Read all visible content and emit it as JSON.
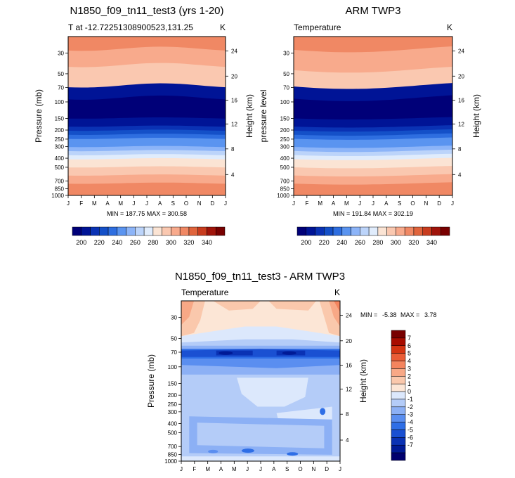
{
  "colors": {
    "abs_scale": [
      "#000078",
      "#001496",
      "#0a32b4",
      "#1450c8",
      "#2e6ee0",
      "#5a94f0",
      "#8cb4f8",
      "#bcd4fa",
      "#e0ecfc",
      "#fbe4d4",
      "#fac8b0",
      "#f8aa8c",
      "#f08864",
      "#e0643c",
      "#c83c1e",
      "#a0140a",
      "#780000"
    ],
    "diff_scale": [
      "#00006e",
      "#001a96",
      "#0a32b4",
      "#1a50d2",
      "#2e6ee6",
      "#5a8ef0",
      "#8cb0f5",
      "#b4ccf8",
      "#dce8fc",
      "#fce6d6",
      "#fac8ac",
      "#f8a886",
      "#f4845e",
      "#ea5c36",
      "#d43412",
      "#a80c00",
      "#780000"
    ]
  },
  "months": [
    "J",
    "F",
    "M",
    "A",
    "M",
    "J",
    "J",
    "A",
    "S",
    "O",
    "N",
    "D",
    "J"
  ],
  "pressure_ticks": [
    "30",
    "50",
    "70",
    "100",
    "150",
    "200",
    "250",
    "300",
    "400",
    "500",
    "700",
    "850",
    "1000"
  ],
  "height_ticks": [
    "24",
    "20",
    "16",
    "12",
    "8",
    "4"
  ],
  "chart_data": [
    {
      "type": "heatmap",
      "title": "N1850_f09_tn11_test3 (yrs 1-20)",
      "subtitle_left": "T at -12.72251308900523,131.25",
      "subtitle_right": "K",
      "ylabel_left": "Pressure (mb)",
      "ylabel_right": "Height (km)",
      "min_max": "MIN = 187.75 MAX = 300.58",
      "colorbar_labels": [
        "200",
        "220",
        "240",
        "260",
        "280",
        "300",
        "320",
        "340"
      ],
      "profile_levels": [
        12,
        12,
        12,
        11,
        11,
        11,
        11,
        10,
        10,
        10,
        10,
        10,
        1,
        1,
        1,
        0,
        0,
        0,
        0,
        0,
        1,
        1,
        2,
        3,
        4,
        5,
        5,
        6,
        7,
        8,
        9,
        9,
        10,
        10,
        11,
        11,
        12,
        12,
        12
      ],
      "shape": "flat"
    },
    {
      "type": "heatmap",
      "title": "ARM TWP3",
      "subtitle_left": "Temperature",
      "subtitle_right": "K",
      "ylabel_left": "pressure level",
      "ylabel_right": "Height (km)",
      "min_max": "MIN = 191.84 MAX = 302.19",
      "colorbar_labels": [
        "200",
        "220",
        "240",
        "260",
        "280",
        "300",
        "320",
        "340"
      ],
      "profile_levels": [
        12,
        12,
        12,
        11,
        11,
        11,
        11,
        11,
        10,
        10,
        10,
        10,
        1,
        1,
        1,
        0,
        0,
        0,
        0,
        0,
        1,
        1,
        2,
        3,
        4,
        5,
        5,
        6,
        7,
        8,
        9,
        9,
        10,
        10,
        11,
        11,
        12,
        12,
        12
      ],
      "shape": "wave"
    },
    {
      "type": "heatmap",
      "title": "N1850_f09_tn11_test3 - ARM TWP3",
      "subtitle_left": "Temperature",
      "subtitle_right": "K",
      "ylabel_left": "Pressure (mb)",
      "ylabel_right": "Height (km)",
      "min_max_label": "MIN =",
      "min_value": "-5.38",
      "max_label": "MAX =",
      "max_value": "3.78",
      "colorbar_labels": [
        "7",
        "6",
        "5",
        "4",
        "3",
        "2",
        "1",
        "0",
        "-1",
        "-2",
        "-3",
        "-4",
        "-5",
        "-6",
        "-7"
      ]
    }
  ]
}
